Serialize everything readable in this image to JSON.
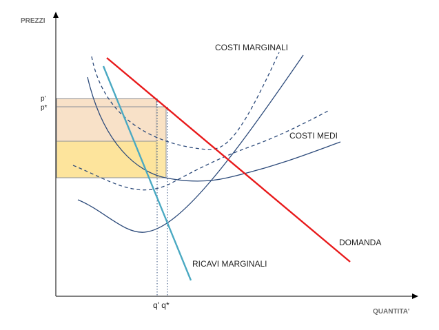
{
  "axes": {
    "y_label": "PREZZI",
    "x_label": "QUANTITA'"
  },
  "curve_labels": {
    "marginal_cost": "COSTI MARGINALI",
    "average_cost": "COSTI MEDI",
    "demand": "DOMANDA",
    "marginal_revenue": "RICAVI MARGINALI"
  },
  "ticks": {
    "p_prime": "p'",
    "p_star": "p*",
    "q_labels": "q' q*"
  },
  "colors": {
    "axis": "#000000",
    "curve_blue": "#2c4a7a",
    "demand": "#e8191a",
    "marginal_revenue": "#4aa9c2",
    "area_orange": "#f8e1c8",
    "area_yellow": "#fde49c",
    "guide_gray": "#8a8f98"
  }
}
